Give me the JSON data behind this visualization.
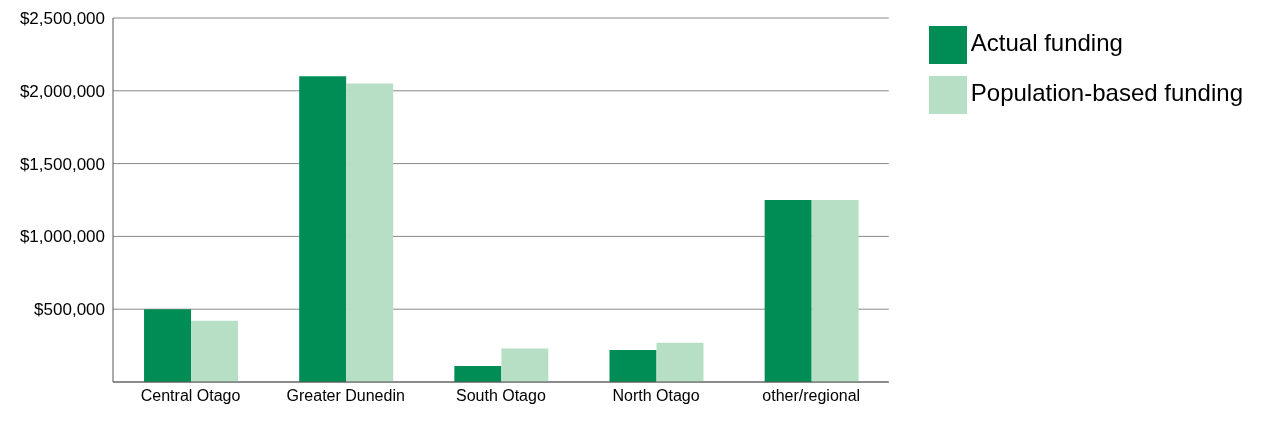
{
  "chart_data": {
    "type": "bar",
    "categories": [
      "Central Otago",
      "Greater Dunedin",
      "South Otago",
      "North Otago",
      "other/regional"
    ],
    "series": [
      {
        "name": "Actual funding",
        "color": "#008c55",
        "values": [
          500000,
          2100000,
          110000,
          220000,
          1250000
        ]
      },
      {
        "name": "Population-based funding",
        "color": "#b7dfc6",
        "values": [
          420000,
          2050000,
          230000,
          270000,
          1250000
        ]
      }
    ],
    "ylim": [
      0,
      2500000
    ],
    "yticks": [
      {
        "value": 500000,
        "label": "$500,000"
      },
      {
        "value": 1000000,
        "label": "$1,000,000"
      },
      {
        "value": 1500000,
        "label": "$1,500,000"
      },
      {
        "value": 2000000,
        "label": "$2,000,000"
      },
      {
        "value": 2500000,
        "label": "$2,500,000"
      }
    ],
    "grid": "y",
    "legend": "top right"
  }
}
